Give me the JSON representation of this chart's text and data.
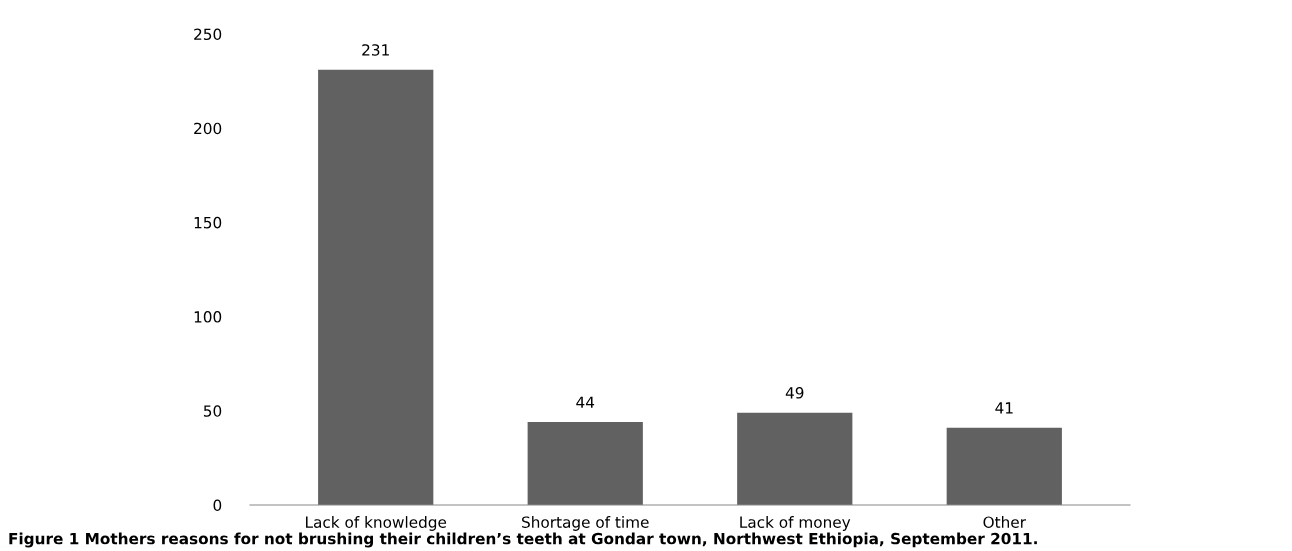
{
  "chart_data": {
    "type": "bar",
    "categories": [
      "Lack of knowledge",
      "Shortage of time",
      "Lack of money",
      "Other"
    ],
    "values": [
      231,
      44,
      49,
      41
    ],
    "color": "#616161",
    "ylim": [
      0,
      250
    ],
    "yticks": [
      0,
      50,
      100,
      150,
      200,
      250
    ],
    "grid": false,
    "data_labels": true,
    "annotations": [
      "Figure 1 Mothers reasons for not brushing their children’s teeth at Gondar town, Northwest Ethiopia, September 2011."
    ]
  }
}
